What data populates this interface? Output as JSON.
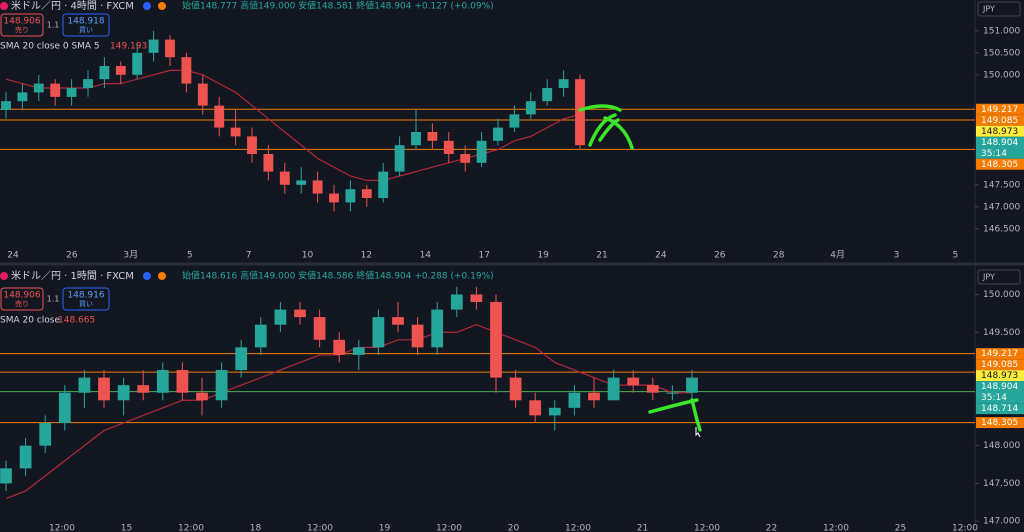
{
  "panels": [
    {
      "symbol_title": "米ドル／円 · 4時間 · FXCM",
      "ohlc_readout": "始値148.777 高値149.000 安値148.581 終値148.904 +0.127 (+0.09%)",
      "sell_price": "148.906",
      "sell_label": "売り",
      "spread": "1.1",
      "buy_price": "148.918",
      "buy_label": "買い",
      "indicator_label": "SMA 20 close 0 SMA 5",
      "indicator_value": "149.193",
      "currency": "JPY",
      "chart": {
        "type": "candlestick",
        "up_color": "#26a69a",
        "down_color": "#ef5350",
        "candles": [
          [
            149.2,
            149.6,
            149.0,
            149.4
          ],
          [
            149.4,
            149.8,
            149.2,
            149.6
          ],
          [
            149.6,
            150.0,
            149.4,
            149.8
          ],
          [
            149.8,
            149.9,
            149.3,
            149.5
          ],
          [
            149.5,
            149.9,
            149.3,
            149.7
          ],
          [
            149.7,
            150.1,
            149.5,
            149.9
          ],
          [
            149.9,
            150.4,
            149.7,
            150.2
          ],
          [
            150.2,
            150.3,
            149.8,
            150.0
          ],
          [
            150.0,
            150.7,
            149.9,
            150.5
          ],
          [
            150.5,
            151.0,
            150.3,
            150.8
          ],
          [
            150.8,
            150.9,
            150.2,
            150.4
          ],
          [
            150.4,
            150.5,
            149.6,
            149.8
          ],
          [
            149.8,
            150.0,
            149.1,
            149.3
          ],
          [
            149.3,
            149.5,
            148.6,
            148.8
          ],
          [
            148.8,
            149.2,
            148.4,
            148.6
          ],
          [
            148.6,
            148.8,
            148.0,
            148.2
          ],
          [
            148.2,
            148.4,
            147.6,
            147.8
          ],
          [
            147.8,
            148.0,
            147.3,
            147.5
          ],
          [
            147.5,
            147.9,
            147.3,
            147.6
          ],
          [
            147.6,
            147.8,
            147.1,
            147.3
          ],
          [
            147.3,
            147.5,
            146.9,
            147.1
          ],
          [
            147.1,
            147.6,
            146.9,
            147.4
          ],
          [
            147.4,
            147.5,
            147.0,
            147.2
          ],
          [
            147.2,
            148.0,
            147.1,
            147.8
          ],
          [
            147.8,
            148.6,
            147.7,
            148.4
          ],
          [
            148.4,
            149.2,
            148.3,
            148.7
          ],
          [
            148.7,
            148.9,
            148.3,
            148.5
          ],
          [
            148.5,
            148.7,
            148.0,
            148.2
          ],
          [
            148.2,
            148.4,
            147.8,
            148.0
          ],
          [
            148.0,
            148.7,
            147.9,
            148.5
          ],
          [
            148.5,
            149.0,
            148.4,
            148.8
          ],
          [
            148.8,
            149.3,
            148.7,
            149.1
          ],
          [
            149.1,
            149.6,
            149.0,
            149.4
          ],
          [
            149.4,
            149.9,
            149.3,
            149.7
          ],
          [
            149.7,
            150.1,
            149.5,
            149.9
          ],
          [
            149.9,
            150.0,
            148.3,
            148.4
          ]
        ],
        "sma": {
          "color": "#b2283a",
          "values": [
            149.9,
            149.8,
            149.7,
            149.7,
            149.7,
            149.7,
            149.8,
            149.8,
            149.9,
            150.0,
            150.1,
            150.1,
            150.0,
            149.8,
            149.6,
            149.3,
            149.0,
            148.7,
            148.4,
            148.1,
            147.9,
            147.7,
            147.6,
            147.6,
            147.7,
            147.8,
            147.9,
            148.0,
            148.1,
            148.2,
            148.3,
            148.5,
            148.6,
            148.8,
            149.0,
            149.1
          ]
        },
        "ylim": [
          146.2,
          151.7
        ],
        "yticks": [
          {
            "value": 151,
            "label": "151.000"
          },
          {
            "value": 150.5,
            "label": "150.500"
          },
          {
            "value": 150,
            "label": "150.000"
          },
          {
            "value": 148,
            "label": "148.000"
          },
          {
            "value": 147.5,
            "label": "147.500"
          },
          {
            "value": 147,
            "label": "147.000"
          },
          {
            "value": 146.5,
            "label": "146.500"
          }
        ],
        "xlabels": [
          "24",
          "26",
          "3月",
          "5",
          "7",
          "10",
          "12",
          "14",
          "17",
          "19",
          "21",
          "24",
          "26",
          "28",
          "4月",
          "3",
          "5"
        ],
        "levels": [
          {
            "value": 149.217,
            "color": "#f57c00"
          },
          {
            "value": 148.973,
            "color": "#f57c00"
          },
          {
            "value": 148.305,
            "color": "#f57c00"
          }
        ],
        "badges": [
          {
            "value": 149.217,
            "label": "149.217",
            "color": "#f57c00"
          },
          {
            "value": 149.085,
            "label": "149.085",
            "color": "#f57c00"
          },
          {
            "value": 148.973,
            "label": "148.973",
            "color": "#ffeb3b"
          },
          {
            "value": 148.904,
            "label": "148.904",
            "color": "#26a69a",
            "countdown": "35:14"
          },
          {
            "value": 148.305,
            "label": "148.305",
            "color": "#f57c00"
          }
        ]
      }
    },
    {
      "symbol_title": "米ドル／円 · 1時間 · FXCM",
      "ohlc_readout": "始値148.616 高値149.000 安値148.586 終値148.904 +0.288 (+0.19%)",
      "sell_price": "148.906",
      "sell_label": "売り",
      "spread": "1.1",
      "buy_price": "148.916",
      "buy_label": "買い",
      "indicator_label": "SMA 20 close",
      "indicator_value": "148.665",
      "currency": "JPY",
      "chart": {
        "type": "candlestick",
        "up_color": "#26a69a",
        "down_color": "#ef5350",
        "candles": [
          [
            147.5,
            147.8,
            147.4,
            147.7
          ],
          [
            147.7,
            148.1,
            147.6,
            148.0
          ],
          [
            148.0,
            148.4,
            147.9,
            148.3
          ],
          [
            148.3,
            148.8,
            148.2,
            148.7
          ],
          [
            148.7,
            149.0,
            148.5,
            148.9
          ],
          [
            148.9,
            149.0,
            148.5,
            148.6
          ],
          [
            148.6,
            148.9,
            148.4,
            148.8
          ],
          [
            148.8,
            149.0,
            148.6,
            148.7
          ],
          [
            148.7,
            149.1,
            148.6,
            149.0
          ],
          [
            149.0,
            149.1,
            148.6,
            148.7
          ],
          [
            148.7,
            148.9,
            148.4,
            148.6
          ],
          [
            148.6,
            149.1,
            148.5,
            149.0
          ],
          [
            149.0,
            149.4,
            148.9,
            149.3
          ],
          [
            149.3,
            149.7,
            149.2,
            149.6
          ],
          [
            149.6,
            149.9,
            149.5,
            149.8
          ],
          [
            149.8,
            149.9,
            149.6,
            149.7
          ],
          [
            149.7,
            149.8,
            149.3,
            149.4
          ],
          [
            149.4,
            149.5,
            149.1,
            149.2
          ],
          [
            149.2,
            149.4,
            149.0,
            149.3
          ],
          [
            149.3,
            149.8,
            149.2,
            149.7
          ],
          [
            149.7,
            149.9,
            149.5,
            149.6
          ],
          [
            149.6,
            149.7,
            149.2,
            149.3
          ],
          [
            149.3,
            149.9,
            149.2,
            149.8
          ],
          [
            149.8,
            150.1,
            149.7,
            150.0
          ],
          [
            150.0,
            150.1,
            149.8,
            149.9
          ],
          [
            149.9,
            150.0,
            148.7,
            148.9
          ],
          [
            148.9,
            149.0,
            148.5,
            148.6
          ],
          [
            148.6,
            148.7,
            148.3,
            148.4
          ],
          [
            148.4,
            148.6,
            148.2,
            148.5
          ],
          [
            148.5,
            148.8,
            148.4,
            148.7
          ],
          [
            148.7,
            148.9,
            148.5,
            148.6
          ],
          [
            148.6,
            149.0,
            148.6,
            148.9
          ],
          [
            148.9,
            149.0,
            148.7,
            148.8
          ],
          [
            148.8,
            148.9,
            148.6,
            148.7
          ],
          [
            148.7,
            148.8,
            148.6,
            148.7
          ],
          [
            148.7,
            149.0,
            148.6,
            148.9
          ]
        ],
        "sma": {
          "color": "#b2283a",
          "values": [
            147.3,
            147.4,
            147.6,
            147.8,
            148.0,
            148.2,
            148.3,
            148.4,
            148.5,
            148.6,
            148.6,
            148.7,
            148.8,
            148.9,
            149.0,
            149.1,
            149.2,
            149.2,
            149.3,
            149.3,
            149.4,
            149.4,
            149.5,
            149.5,
            149.6,
            149.5,
            149.4,
            149.3,
            149.1,
            149.0,
            148.9,
            148.8,
            148.8,
            148.8,
            148.7,
            148.7
          ]
        },
        "ylim": [
          146.95,
          150.35
        ],
        "yticks": [
          {
            "value": 150,
            "label": "150.000"
          },
          {
            "value": 149.5,
            "label": "149.500"
          },
          {
            "value": 148,
            "label": "148.000"
          },
          {
            "value": 147.5,
            "label": "147.500"
          },
          {
            "value": 147,
            "label": "147.000"
          }
        ],
        "xlabels": [
          "12:00",
          "15",
          "12:00",
          "18",
          "12:00",
          "19",
          "12:00",
          "20",
          "12:00",
          "21",
          "12:00",
          "22",
          "12:00",
          "25",
          "12:00"
        ],
        "levels": [
          {
            "value": 149.217,
            "color": "#f57c00"
          },
          {
            "value": 148.973,
            "color": "#f57c00"
          },
          {
            "value": 148.714,
            "color": "#4caf50"
          },
          {
            "value": 148.305,
            "color": "#f57c00"
          }
        ],
        "badges": [
          {
            "value": 149.217,
            "label": "149.217",
            "color": "#f57c00"
          },
          {
            "value": 149.085,
            "label": "149.085",
            "color": "#f57c00"
          },
          {
            "value": 148.973,
            "label": "148.973",
            "color": "#ffeb3b"
          },
          {
            "value": 148.904,
            "label": "148.904",
            "color": "#26a69a",
            "countdown": "35:14"
          },
          {
            "value": 148.714,
            "label": "148.714",
            "color": "#26a69a"
          },
          {
            "value": 148.305,
            "label": "148.305",
            "color": "#f57c00"
          }
        ]
      }
    }
  ]
}
